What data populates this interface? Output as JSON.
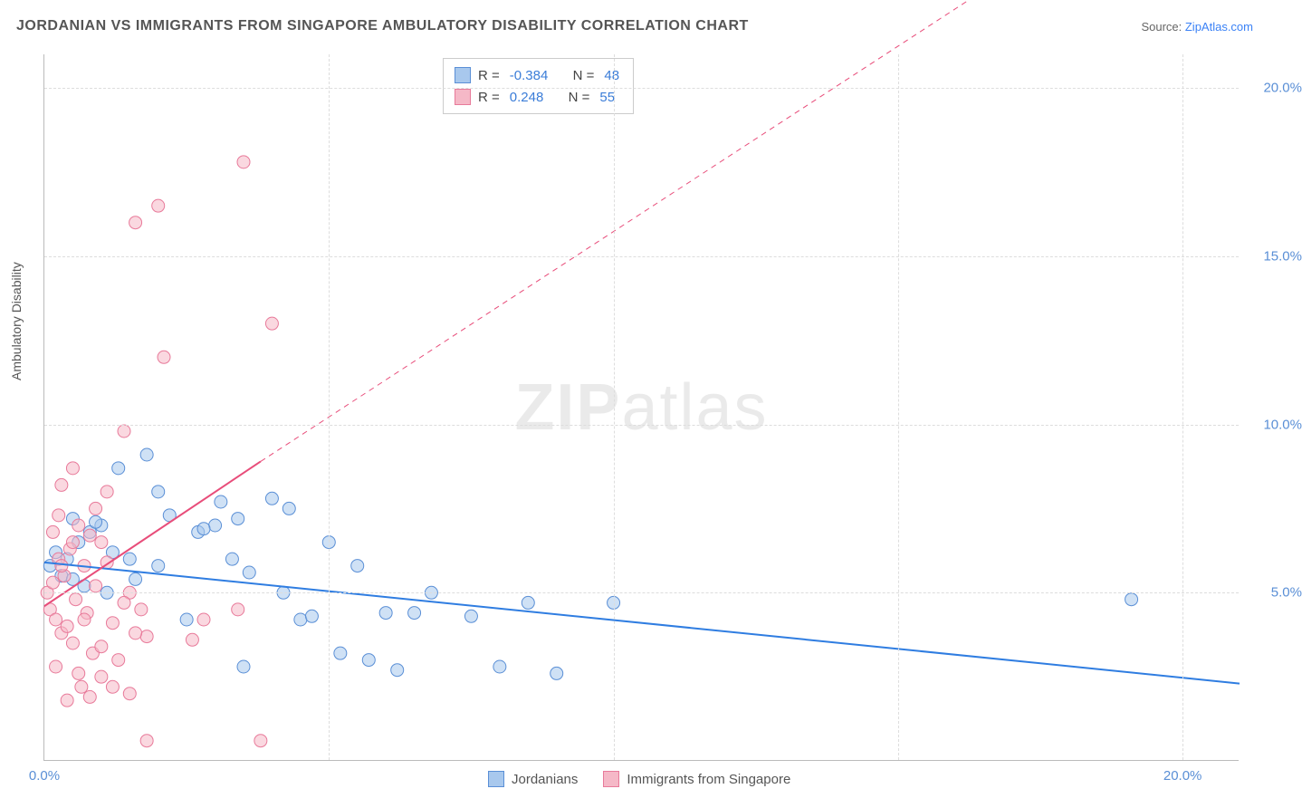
{
  "title": "JORDANIAN VS IMMIGRANTS FROM SINGAPORE AMBULATORY DISABILITY CORRELATION CHART",
  "source_prefix": "Source: ",
  "source_link": "ZipAtlas.com",
  "y_axis_label": "Ambulatory Disability",
  "watermark_bold": "ZIP",
  "watermark_rest": "atlas",
  "chart": {
    "type": "scatter",
    "background_color": "#ffffff",
    "grid_color": "#dddddd",
    "axis_color": "#bbbbbb",
    "xlim": [
      0,
      21
    ],
    "ylim": [
      0,
      21
    ],
    "xticks": [
      0,
      5,
      10,
      15,
      20
    ],
    "xtick_labels": [
      "0.0%",
      "",
      "",
      "",
      "20.0%"
    ],
    "yticks": [
      5,
      10,
      15,
      20
    ],
    "ytick_labels": [
      "5.0%",
      "10.0%",
      "15.0%",
      "20.0%"
    ],
    "tick_color": "#5a8fd6",
    "tick_fontsize": 15,
    "label_fontsize": 14,
    "title_fontsize": 16,
    "marker_radius": 7,
    "marker_opacity": 0.55,
    "line_width": 2,
    "series": [
      {
        "name": "Jordanians",
        "color_fill": "#a8c8ed",
        "color_stroke": "#5a8fd6",
        "trend_color": "#2f7de1",
        "trend_style": "solid",
        "trend": {
          "x1": 0,
          "y1": 5.9,
          "x2": 21,
          "y2": 2.3
        },
        "R": "-0.384",
        "N": "48",
        "points": [
          [
            0.1,
            5.8
          ],
          [
            0.2,
            6.2
          ],
          [
            0.3,
            5.5
          ],
          [
            0.4,
            6.0
          ],
          [
            0.5,
            5.4
          ],
          [
            0.6,
            6.5
          ],
          [
            0.7,
            5.2
          ],
          [
            0.8,
            6.8
          ],
          [
            1.0,
            7.0
          ],
          [
            1.1,
            5.0
          ],
          [
            1.3,
            8.7
          ],
          [
            1.5,
            6.0
          ],
          [
            1.8,
            9.1
          ],
          [
            2.0,
            5.8
          ],
          [
            2.2,
            7.3
          ],
          [
            2.5,
            4.2
          ],
          [
            2.7,
            6.8
          ],
          [
            3.0,
            7.0
          ],
          [
            3.1,
            7.7
          ],
          [
            3.3,
            6.0
          ],
          [
            3.5,
            2.8
          ],
          [
            3.6,
            5.6
          ],
          [
            4.0,
            7.8
          ],
          [
            4.2,
            5.0
          ],
          [
            4.5,
            4.2
          ],
          [
            4.7,
            4.3
          ],
          [
            5.2,
            3.2
          ],
          [
            5.5,
            5.8
          ],
          [
            5.7,
            3.0
          ],
          [
            6.0,
            4.4
          ],
          [
            6.2,
            2.7
          ],
          [
            6.5,
            4.4
          ],
          [
            6.8,
            5.0
          ],
          [
            7.5,
            4.3
          ],
          [
            8.0,
            2.8
          ],
          [
            8.5,
            4.7
          ],
          [
            9.0,
            2.6
          ],
          [
            10.0,
            4.7
          ],
          [
            19.1,
            4.8
          ],
          [
            2.8,
            6.9
          ],
          [
            1.2,
            6.2
          ],
          [
            1.6,
            5.4
          ],
          [
            0.9,
            7.1
          ],
          [
            2.0,
            8.0
          ],
          [
            3.4,
            7.2
          ],
          [
            4.3,
            7.5
          ],
          [
            5.0,
            6.5
          ],
          [
            0.5,
            7.2
          ]
        ]
      },
      {
        "name": "Immigrants from Singapore",
        "color_fill": "#f5b8c7",
        "color_stroke": "#e87a9a",
        "trend_color": "#e84d7a",
        "trend_style": "split",
        "trend_solid": {
          "x1": 0,
          "y1": 4.6,
          "x2": 3.8,
          "y2": 8.9
        },
        "trend_dashed": {
          "x1": 3.8,
          "y1": 8.9,
          "x2": 17.5,
          "y2": 24
        },
        "R": "0.248",
        "N": "55",
        "points": [
          [
            0.05,
            5.0
          ],
          [
            0.1,
            4.5
          ],
          [
            0.15,
            5.3
          ],
          [
            0.2,
            4.2
          ],
          [
            0.25,
            6.0
          ],
          [
            0.3,
            3.8
          ],
          [
            0.35,
            5.5
          ],
          [
            0.4,
            4.0
          ],
          [
            0.45,
            6.3
          ],
          [
            0.5,
            3.5
          ],
          [
            0.55,
            4.8
          ],
          [
            0.6,
            7.0
          ],
          [
            0.65,
            2.2
          ],
          [
            0.7,
            5.8
          ],
          [
            0.75,
            4.4
          ],
          [
            0.8,
            6.7
          ],
          [
            0.85,
            3.2
          ],
          [
            0.9,
            7.5
          ],
          [
            1.0,
            2.5
          ],
          [
            1.1,
            8.0
          ],
          [
            1.2,
            4.1
          ],
          [
            1.3,
            3.0
          ],
          [
            1.4,
            9.8
          ],
          [
            1.5,
            2.0
          ],
          [
            1.6,
            16.0
          ],
          [
            1.7,
            4.5
          ],
          [
            1.8,
            0.6
          ],
          [
            2.0,
            16.5
          ],
          [
            2.1,
            12.0
          ],
          [
            0.3,
            8.2
          ],
          [
            0.5,
            8.7
          ],
          [
            1.0,
            6.5
          ],
          [
            1.5,
            5.0
          ],
          [
            1.8,
            3.7
          ],
          [
            2.6,
            3.6
          ],
          [
            2.8,
            4.2
          ],
          [
            3.4,
            4.5
          ],
          [
            3.5,
            17.8
          ],
          [
            3.8,
            0.6
          ],
          [
            4.0,
            13.0
          ],
          [
            0.2,
            2.8
          ],
          [
            0.4,
            1.8
          ],
          [
            0.6,
            2.6
          ],
          [
            0.8,
            1.9
          ],
          [
            1.0,
            3.4
          ],
          [
            1.2,
            2.2
          ],
          [
            1.4,
            4.7
          ],
          [
            1.6,
            3.8
          ],
          [
            0.9,
            5.2
          ],
          [
            1.1,
            5.9
          ],
          [
            0.7,
            4.2
          ],
          [
            0.3,
            5.8
          ],
          [
            0.5,
            6.5
          ],
          [
            0.15,
            6.8
          ],
          [
            0.25,
            7.3
          ]
        ]
      }
    ]
  },
  "legend_top": {
    "R_label": "R =",
    "N_label": "N ="
  },
  "legend_bottom": [
    {
      "label": "Jordanians",
      "fill": "#a8c8ed",
      "stroke": "#5a8fd6"
    },
    {
      "label": "Immigrants from Singapore",
      "fill": "#f5b8c7",
      "stroke": "#e87a9a"
    }
  ]
}
